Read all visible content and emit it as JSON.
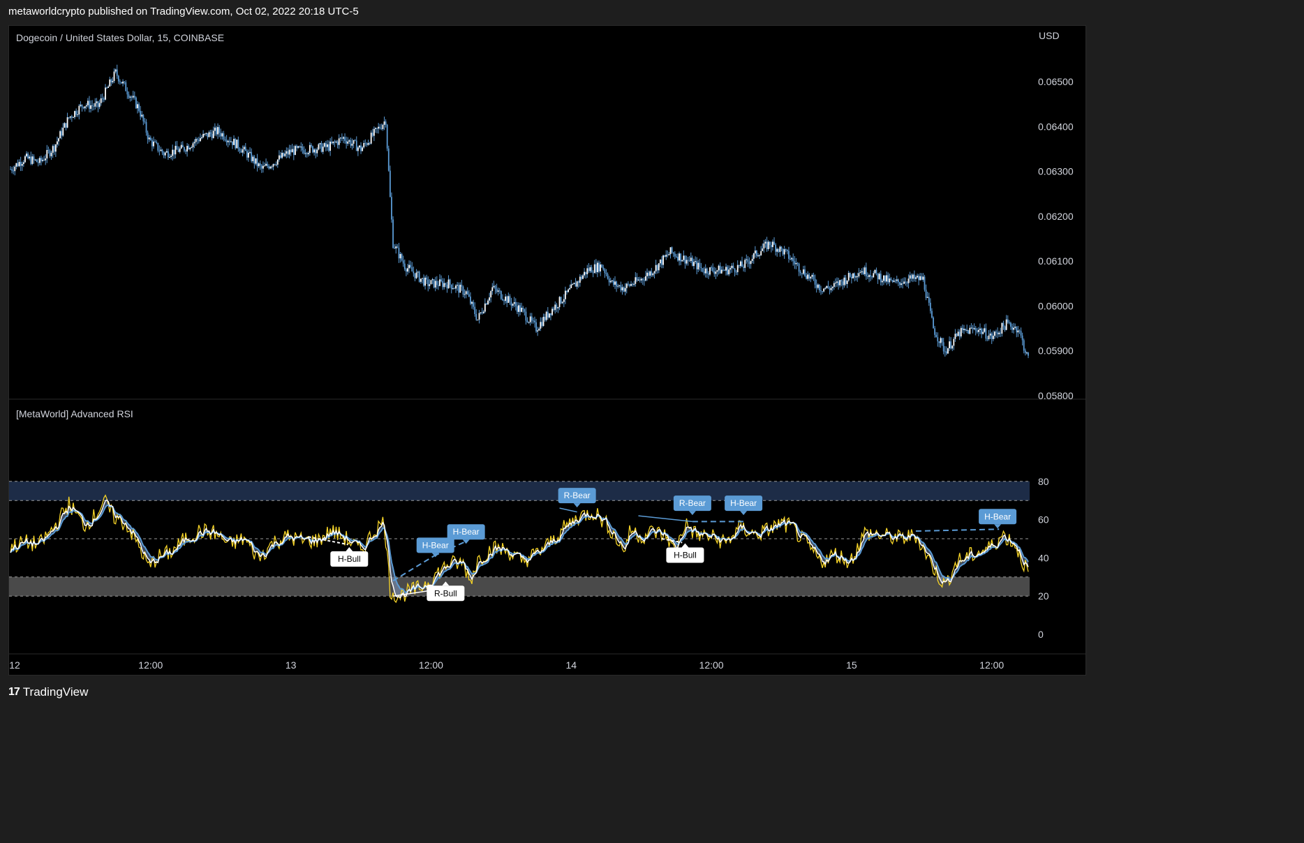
{
  "header": {
    "published_line": "metaworldcrypto published on TradingView.com, Oct 02, 2022 20:18 UTC-5"
  },
  "footer": {
    "brand": "TradingView",
    "brand_mark": "17"
  },
  "colors": {
    "background": "#000000",
    "candle": "#5b9bd5",
    "rsi_line": "#f5d327",
    "rsi_ma_fast": "#ffffff",
    "rsi_ma_slow": "#5b9bd5",
    "overbought_zone": "#1d2c47",
    "oversold_zone": "#4a4a4a",
    "bear_label": "#5b9bd5",
    "bull_label": "#ffffff"
  },
  "chart_data": [
    {
      "type": "candlestick",
      "title": "Dogecoin / United States Dollar, 15, COINBASE",
      "currency_label": "USD",
      "x_tick_labels": [
        "12",
        "12:00",
        "13",
        "12:00",
        "14",
        "12:00",
        "15",
        "12:00"
      ],
      "y_tick_labels": [
        "0.06500",
        "0.06400",
        "0.06300",
        "0.06200",
        "0.06100",
        "0.06000",
        "0.05900",
        "0.05800"
      ],
      "ylim": [
        0.058,
        0.0655
      ],
      "grid": false,
      "close_path": [
        [
          0,
          0.06305
        ],
        [
          10,
          0.0633
        ],
        [
          20,
          0.0632
        ],
        [
          30,
          0.06355
        ],
        [
          40,
          0.0642
        ],
        [
          50,
          0.0645
        ],
        [
          60,
          0.06445
        ],
        [
          72,
          0.0652
        ],
        [
          80,
          0.0648
        ],
        [
          88,
          0.0644
        ],
        [
          95,
          0.0637
        ],
        [
          105,
          0.0634
        ],
        [
          118,
          0.0635
        ],
        [
          130,
          0.06375
        ],
        [
          142,
          0.0639
        ],
        [
          155,
          0.0636
        ],
        [
          165,
          0.0633
        ],
        [
          172,
          0.06305
        ],
        [
          180,
          0.0632
        ],
        [
          192,
          0.06345
        ],
        [
          205,
          0.0635
        ],
        [
          218,
          0.06355
        ],
        [
          228,
          0.06375
        ],
        [
          240,
          0.0635
        ],
        [
          248,
          0.0638
        ],
        [
          257,
          0.06415
        ],
        [
          260,
          0.0624
        ],
        [
          262,
          0.0614
        ],
        [
          270,
          0.0609
        ],
        [
          285,
          0.0605
        ],
        [
          300,
          0.0605
        ],
        [
          312,
          0.0603
        ],
        [
          320,
          0.0597
        ],
        [
          330,
          0.0604
        ],
        [
          342,
          0.0601
        ],
        [
          350,
          0.0599
        ],
        [
          360,
          0.0595
        ],
        [
          370,
          0.0599
        ],
        [
          382,
          0.0603
        ],
        [
          395,
          0.0608
        ],
        [
          405,
          0.0609
        ],
        [
          412,
          0.0605
        ],
        [
          420,
          0.0604
        ],
        [
          432,
          0.0606
        ],
        [
          440,
          0.0608
        ],
        [
          452,
          0.0612
        ],
        [
          465,
          0.061
        ],
        [
          475,
          0.0608
        ],
        [
          490,
          0.0608
        ],
        [
          502,
          0.0609
        ],
        [
          512,
          0.0612
        ],
        [
          520,
          0.0614
        ],
        [
          530,
          0.0612
        ],
        [
          542,
          0.0608
        ],
        [
          555,
          0.0604
        ],
        [
          562,
          0.0604
        ],
        [
          572,
          0.0606
        ],
        [
          582,
          0.0608
        ],
        [
          592,
          0.0607
        ],
        [
          605,
          0.0605
        ],
        [
          615,
          0.0606
        ],
        [
          625,
          0.0606
        ],
        [
          632,
          0.0595
        ],
        [
          640,
          0.059
        ],
        [
          650,
          0.0594
        ],
        [
          662,
          0.0595
        ],
        [
          672,
          0.0593
        ],
        [
          682,
          0.0596
        ],
        [
          690,
          0.0595
        ],
        [
          697,
          0.0588
        ]
      ]
    },
    {
      "type": "line",
      "title": "[MetaWorld] Advanced RSI",
      "y_tick_labels": [
        "80",
        "60",
        "40",
        "20",
        "0"
      ],
      "ylim": [
        0,
        100
      ],
      "overbought_band": [
        70,
        80
      ],
      "oversold_band": [
        20,
        30
      ],
      "midline": 50,
      "rsi": [
        [
          0,
          46
        ],
        [
          10,
          48
        ],
        [
          20,
          47
        ],
        [
          30,
          56
        ],
        [
          40,
          68
        ],
        [
          45,
          63
        ],
        [
          50,
          57
        ],
        [
          58,
          62
        ],
        [
          64,
          70
        ],
        [
          70,
          62
        ],
        [
          80,
          57
        ],
        [
          88,
          46
        ],
        [
          95,
          35
        ],
        [
          100,
          40
        ],
        [
          110,
          43
        ],
        [
          120,
          50
        ],
        [
          130,
          54
        ],
        [
          140,
          53
        ],
        [
          150,
          47
        ],
        [
          160,
          50
        ],
        [
          170,
          40
        ],
        [
          180,
          48
        ],
        [
          190,
          51
        ],
        [
          200,
          49
        ],
        [
          210,
          49
        ],
        [
          220,
          54
        ],
        [
          230,
          50
        ],
        [
          240,
          44
        ],
        [
          250,
          55
        ],
        [
          256,
          59
        ],
        [
          260,
          23
        ],
        [
          265,
          20
        ],
        [
          272,
          22
        ],
        [
          280,
          24
        ],
        [
          288,
          29
        ],
        [
          300,
          37
        ],
        [
          310,
          37
        ],
        [
          315,
          28
        ],
        [
          320,
          39
        ],
        [
          330,
          45
        ],
        [
          340,
          44
        ],
        [
          350,
          38
        ],
        [
          360,
          42
        ],
        [
          370,
          48
        ],
        [
          380,
          56
        ],
        [
          390,
          62
        ],
        [
          400,
          64
        ],
        [
          410,
          56
        ],
        [
          420,
          44
        ],
        [
          425,
          55
        ],
        [
          432,
          51
        ],
        [
          440,
          54
        ],
        [
          450,
          51
        ],
        [
          455,
          43
        ],
        [
          462,
          58
        ],
        [
          470,
          52
        ],
        [
          480,
          51
        ],
        [
          490,
          48
        ],
        [
          500,
          56
        ],
        [
          510,
          52
        ],
        [
          520,
          55
        ],
        [
          528,
          58
        ],
        [
          535,
          56
        ],
        [
          545,
          47
        ],
        [
          555,
          38
        ],
        [
          565,
          42
        ],
        [
          575,
          38
        ],
        [
          585,
          53
        ],
        [
          595,
          52
        ],
        [
          610,
          50
        ],
        [
          620,
          52
        ],
        [
          632,
          35
        ],
        [
          640,
          25
        ],
        [
          648,
          38
        ],
        [
          660,
          42
        ],
        [
          670,
          45
        ],
        [
          680,
          52
        ],
        [
          688,
          47
        ],
        [
          697,
          32
        ]
      ],
      "divergence_labels": [
        {
          "text": "H-Bull",
          "kind": "bull",
          "bar": 232,
          "rsi": 46
        },
        {
          "text": "H-Bear",
          "kind": "bear",
          "bar": 291,
          "rsi": 40
        },
        {
          "text": "H-Bear",
          "kind": "bear",
          "bar": 312,
          "rsi": 47
        },
        {
          "text": "R-Bull",
          "kind": "bull",
          "bar": 298,
          "rsi": 28
        },
        {
          "text": "R-Bear",
          "kind": "bear",
          "bar": 388,
          "rsi": 66
        },
        {
          "text": "H-Bull",
          "kind": "bull",
          "bar": 462,
          "rsi": 48
        },
        {
          "text": "R-Bear",
          "kind": "bear",
          "bar": 467,
          "rsi": 62
        },
        {
          "text": "H-Bear",
          "kind": "bear",
          "bar": 502,
          "rsi": 62
        },
        {
          "text": "H-Bear",
          "kind": "bear",
          "bar": 676,
          "rsi": 55
        }
      ],
      "divergence_lines": [
        {
          "from": [
            204,
            51
          ],
          "to": [
            231,
            47
          ],
          "color": "#ffffff",
          "dashed": true
        },
        {
          "from": [
            262,
            20
          ],
          "to": [
            297,
            24
          ],
          "color": "#ffffff",
          "dashed": false
        },
        {
          "from": [
            262,
            28
          ],
          "to": [
            290,
            41
          ],
          "color": "#5b9bd5",
          "dashed": true
        },
        {
          "from": [
            290,
            41
          ],
          "to": [
            313,
            49
          ],
          "color": "#5b9bd5",
          "dashed": true
        },
        {
          "from": [
            376,
            66
          ],
          "to": [
            388,
            64
          ],
          "color": "#5b9bd5",
          "dashed": false
        },
        {
          "from": [
            430,
            62
          ],
          "to": [
            467,
            59
          ],
          "color": "#5b9bd5",
          "dashed": false
        },
        {
          "from": [
            446,
            50
          ],
          "to": [
            460,
            48
          ],
          "color": "#ffffff",
          "dashed": true
        },
        {
          "from": [
            467,
            59
          ],
          "to": [
            502,
            59
          ],
          "color": "#5b9bd5",
          "dashed": true
        },
        {
          "from": [
            620,
            54
          ],
          "to": [
            677,
            55
          ],
          "color": "#5b9bd5",
          "dashed": true
        }
      ]
    }
  ]
}
